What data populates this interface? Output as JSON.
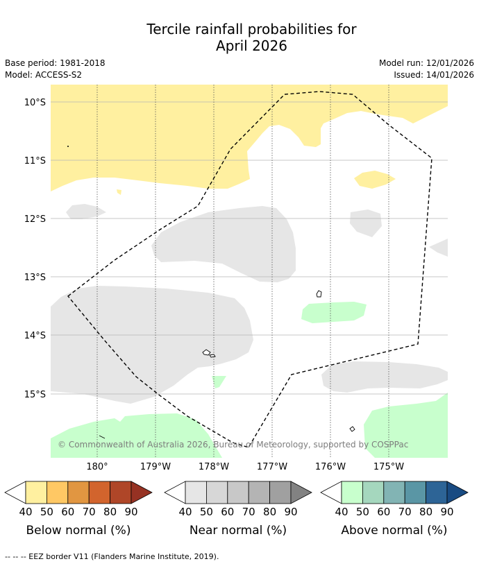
{
  "title": {
    "line1": "Tercile rainfall probabilities for",
    "line2": "April 2026"
  },
  "meta": {
    "base_period": "Base period: 1981-2018",
    "model": "Model: ACCESS-S2",
    "model_run": "Model run: 12/01/2026",
    "issued": "Issued: 14/01/2026"
  },
  "axes": {
    "lat_labels": [
      "10°S",
      "11°S",
      "12°S",
      "13°S",
      "14°S",
      "15°S"
    ],
    "lon_labels": [
      "180°",
      "179°W",
      "178°W",
      "177°W",
      "176°W",
      "175°W"
    ]
  },
  "copyright": "© Commonwealth of Australia 2026, Bureau of Meteorology, supported by COSPPac",
  "colorbars": [
    {
      "title": "Below normal (%)",
      "ticks": [
        "40",
        "50",
        "60",
        "70",
        "80",
        "90"
      ],
      "colors": [
        "#fff0a0",
        "#ffc864",
        "#e19641",
        "#d2642d",
        "#af4628",
        "#963223"
      ]
    },
    {
      "title": "Near normal (%)",
      "ticks": [
        "40",
        "50",
        "60",
        "70",
        "80",
        "90"
      ],
      "colors": [
        "#e6e6e6",
        "#d7d7d7",
        "#c8c8c8",
        "#b4b4b4",
        "#a0a0a0",
        "#828282"
      ]
    },
    {
      "title": "Above normal (%)",
      "ticks": [
        "40",
        "50",
        "60",
        "70",
        "80",
        "90"
      ],
      "colors": [
        "#c8ffcd",
        "#a5d7be",
        "#82b4b4",
        "#5a96a5",
        "#2d6496",
        "#194b82"
      ]
    }
  ],
  "footnote": "--  --  -- EEZ border V11 (Flanders Marine Institute, 2019)."
}
